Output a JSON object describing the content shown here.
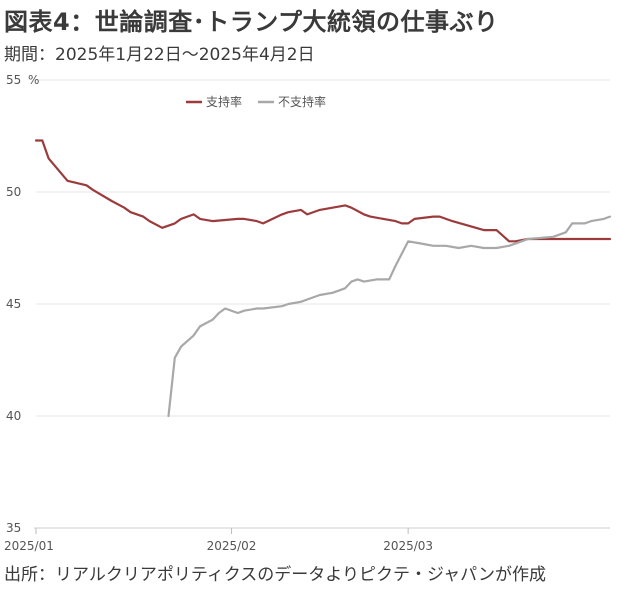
{
  "header": {
    "title": "図表4：世論調査･トランプ大統領の仕事ぶり",
    "subtitle": "期間：2025年1月22日～2025年4月2日"
  },
  "footer": {
    "source": "出所：リアルクリアポリティクスのデータよりピクテ・ジャパンが作成"
  },
  "chart_data": {
    "type": "line",
    "title": "図表4：世論調査･トランプ大統領の仕事ぶり",
    "unit_label": "%",
    "ylim": [
      35,
      55
    ],
    "yticks": [
      35,
      40,
      45,
      50,
      55
    ],
    "xlim": [
      "2025-01-01",
      "2025-04-02"
    ],
    "xticks": [
      {
        "date": "2025-01-01",
        "label": "2025/01"
      },
      {
        "date": "2025-02-01",
        "label": "2025/02"
      },
      {
        "date": "2025-03-01",
        "label": "2025/03"
      }
    ],
    "grid": "horizontal",
    "legend_position": "top-center",
    "series": [
      {
        "name": "支持率",
        "color": "#9b3b3b",
        "x": [
          "2025-01-01",
          "2025-01-02",
          "2025-01-03",
          "2025-01-06",
          "2025-01-09",
          "2025-01-10",
          "2025-01-13",
          "2025-01-15",
          "2025-01-16",
          "2025-01-18",
          "2025-01-19",
          "2025-01-21",
          "2025-01-23",
          "2025-01-24",
          "2025-01-26",
          "2025-01-27",
          "2025-01-29",
          "2025-02-02",
          "2025-02-03",
          "2025-02-05",
          "2025-02-06",
          "2025-02-09",
          "2025-02-10",
          "2025-02-12",
          "2025-02-13",
          "2025-02-15",
          "2025-02-19",
          "2025-02-20",
          "2025-02-22",
          "2025-02-23",
          "2025-02-27",
          "2025-02-28",
          "2025-03-01",
          "2025-03-02",
          "2025-03-05",
          "2025-03-06",
          "2025-03-08",
          "2025-03-13",
          "2025-03-15",
          "2025-03-17",
          "2025-03-18",
          "2025-03-20",
          "2025-03-21",
          "2025-03-24",
          "2025-03-25",
          "2025-03-28",
          "2025-04-01",
          "2025-04-02"
        ],
        "y": [
          52.3,
          52.3,
          51.5,
          50.5,
          50.3,
          50.1,
          49.6,
          49.3,
          49.1,
          48.9,
          48.7,
          48.4,
          48.6,
          48.8,
          49.0,
          48.8,
          48.7,
          48.8,
          48.8,
          48.7,
          48.6,
          49.0,
          49.1,
          49.2,
          49.0,
          49.2,
          49.4,
          49.3,
          49.0,
          48.9,
          48.7,
          48.6,
          48.6,
          48.8,
          48.9,
          48.9,
          48.7,
          48.3,
          48.3,
          47.8,
          47.8,
          47.9,
          47.9,
          47.9,
          47.9,
          47.9,
          47.9,
          47.9
        ],
        "y_note": "values estimated from gridlines"
      },
      {
        "name": "不支持率",
        "color": "#a8a8a8",
        "x": [
          "2025-01-22",
          "2025-01-23",
          "2025-01-24",
          "2025-01-26",
          "2025-01-27",
          "2025-01-29",
          "2025-01-30",
          "2025-01-31",
          "2025-02-02",
          "2025-02-03",
          "2025-02-05",
          "2025-02-06",
          "2025-02-09",
          "2025-02-10",
          "2025-02-12",
          "2025-02-13",
          "2025-02-15",
          "2025-02-17",
          "2025-02-19",
          "2025-02-20",
          "2025-02-21",
          "2025-02-22",
          "2025-02-24",
          "2025-02-26",
          "2025-02-27",
          "2025-03-01",
          "2025-03-03",
          "2025-03-05",
          "2025-03-07",
          "2025-03-09",
          "2025-03-11",
          "2025-03-13",
          "2025-03-15",
          "2025-03-17",
          "2025-03-19",
          "2025-03-20",
          "2025-03-24",
          "2025-03-26",
          "2025-03-27",
          "2025-03-29",
          "2025-03-30",
          "2025-04-01",
          "2025-04-02"
        ],
        "y": [
          40.0,
          42.6,
          43.1,
          43.6,
          44.0,
          44.3,
          44.6,
          44.8,
          44.6,
          44.7,
          44.8,
          44.8,
          44.9,
          45.0,
          45.1,
          45.2,
          45.4,
          45.5,
          45.7,
          46.0,
          46.1,
          46.0,
          46.1,
          46.1,
          46.7,
          47.8,
          47.7,
          47.6,
          47.6,
          47.5,
          47.6,
          47.5,
          47.5,
          47.6,
          47.8,
          47.9,
          48.0,
          48.2,
          48.6,
          48.6,
          48.7,
          48.8,
          48.9
        ],
        "y_note": "values estimated from gridlines"
      }
    ]
  }
}
